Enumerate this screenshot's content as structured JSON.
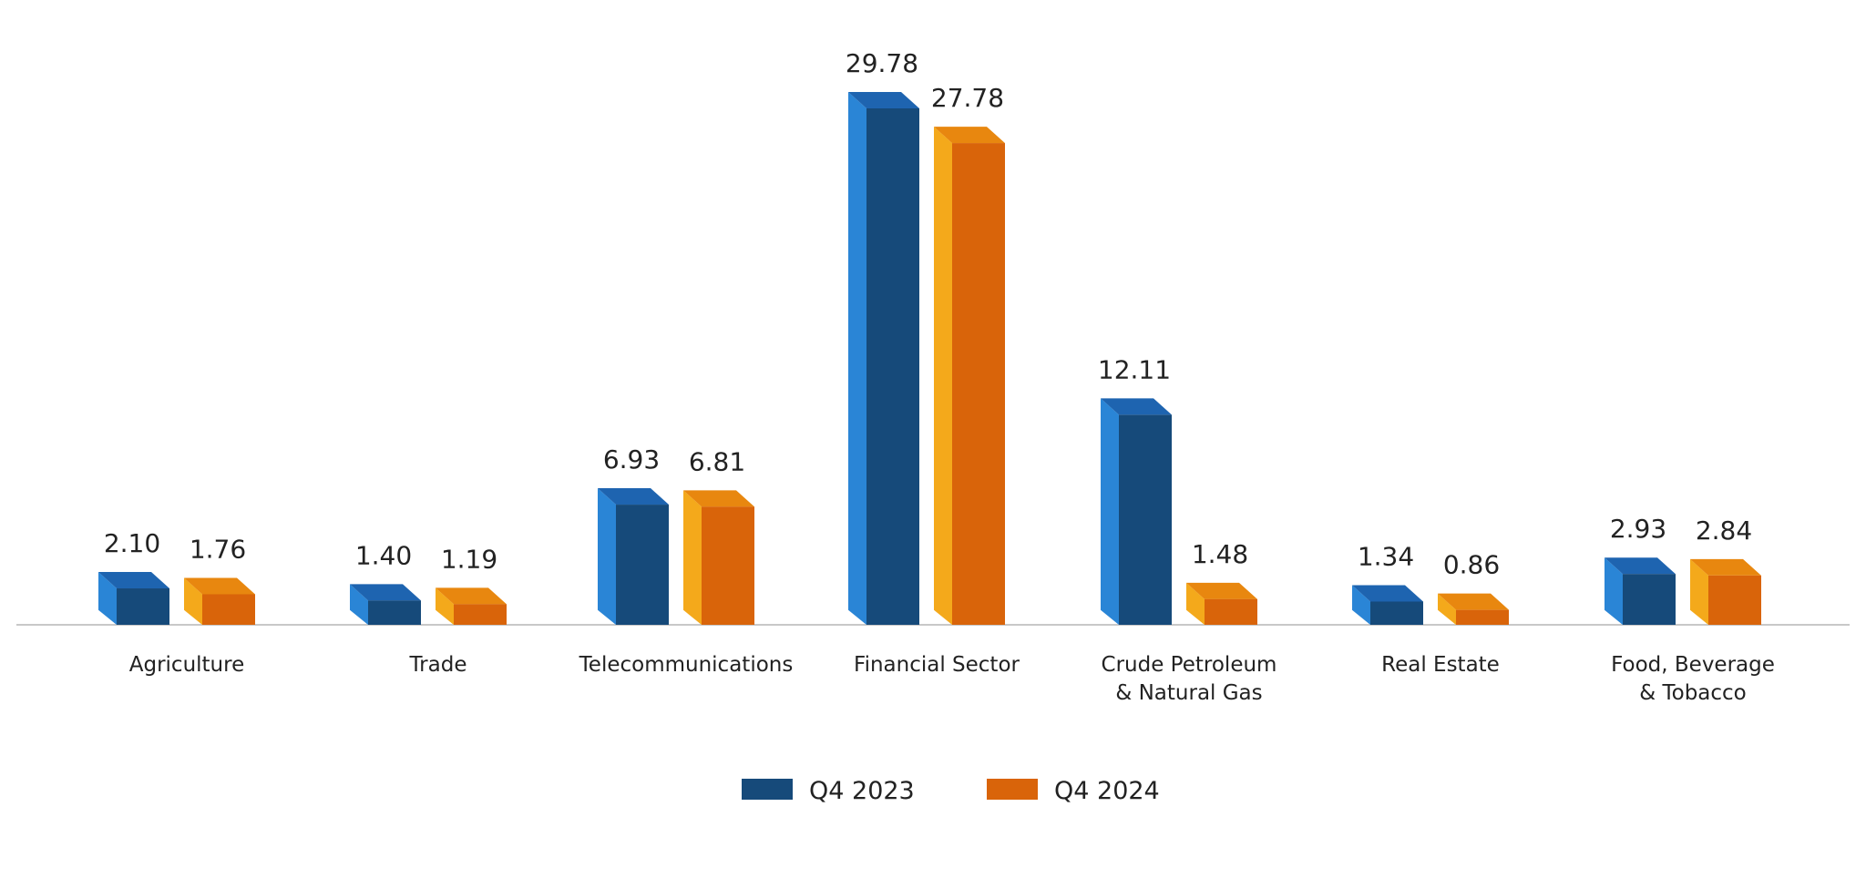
{
  "chart_data": {
    "type": "bar",
    "categories": [
      [
        "Agriculture"
      ],
      [
        "Trade"
      ],
      [
        "Telecommunications"
      ],
      [
        "Financial Sector"
      ],
      [
        "Crude Petroleum",
        "& Natural Gas"
      ],
      [
        "Real Estate"
      ],
      [
        "Food, Beverage",
        "& Tobacco"
      ]
    ],
    "series": [
      {
        "name": "Q4 2023",
        "values": [
          2.1,
          1.4,
          6.93,
          29.78,
          12.11,
          1.34,
          2.93
        ],
        "labels": [
          "2.10",
          "1.40",
          "6.93",
          "29.78",
          "12.11",
          "1.34",
          "2.93"
        ],
        "colors": {
          "front": "#164a7a",
          "side": "#2a85d6",
          "top": "#1e64b0"
        }
      },
      {
        "name": "Q4 2024",
        "values": [
          1.76,
          1.19,
          6.81,
          27.78,
          1.48,
          0.86,
          2.84
        ],
        "labels": [
          "1.76",
          "1.19",
          "6.81",
          "27.78",
          "1.48",
          "0.86",
          "2.84"
        ],
        "colors": {
          "front": "#d9640a",
          "side": "#f4a91b",
          "top": "#e8870f"
        }
      }
    ],
    "ylim": [
      0,
      30
    ],
    "grid": false,
    "legend_position": "bottom-center",
    "baseline_color": "#c8c8c8"
  }
}
